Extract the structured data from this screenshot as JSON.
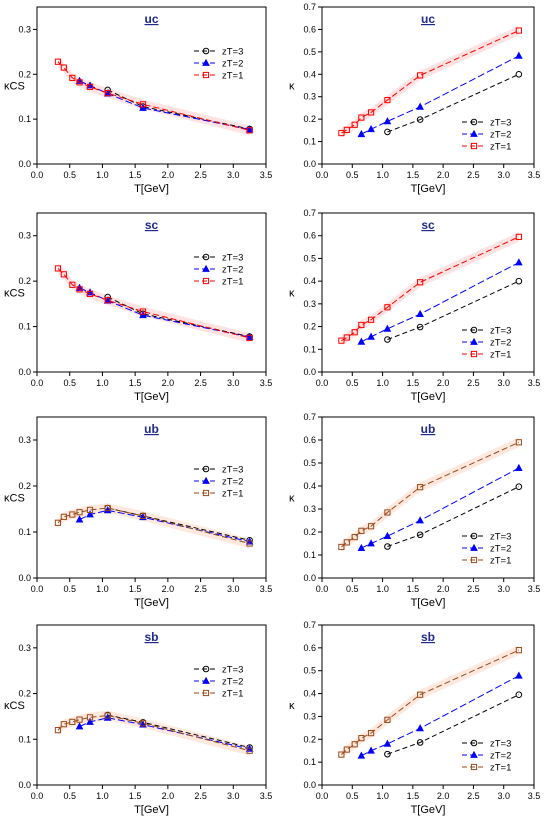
{
  "colors": {
    "axis": "#000000",
    "title": "#1f2a8c",
    "zT3": "#000000",
    "zT2": "#0000ff",
    "zT1_c": "#ff0000",
    "zT1_b": "#9a4a1a",
    "band_c": "#ffd6d6",
    "band_b": "#ffe0d0"
  },
  "chart_data": [
    {
      "type": "line",
      "title": "uc",
      "xlabel": "T[GeV]",
      "ylabel": "κCS",
      "xlim": [
        0.0,
        3.5
      ],
      "ylim": [
        0.0,
        0.35
      ],
      "xticks": [
        "0.0",
        "0.5",
        "1.0",
        "1.5",
        "2.0",
        "2.5",
        "3.0",
        "3.5"
      ],
      "yticks": [
        "0.0",
        "0.1",
        "0.2",
        "0.3"
      ],
      "legend_position": "upper-right",
      "series": [
        {
          "name": "zT=3",
          "marker": "circle",
          "x": [
            1.08,
            1.62,
            3.25
          ],
          "y": [
            0.165,
            0.128,
            0.078
          ]
        },
        {
          "name": "zT=2",
          "marker": "triangle",
          "x": [
            0.65,
            0.81,
            1.08,
            1.62,
            3.25
          ],
          "y": [
            0.185,
            0.175,
            0.157,
            0.125,
            0.077
          ]
        },
        {
          "name": "zT=1",
          "marker": "square",
          "x": [
            0.32,
            0.41,
            0.54,
            0.65,
            0.81,
            1.08,
            1.62,
            3.25
          ],
          "y": [
            0.228,
            0.215,
            0.192,
            0.182,
            0.172,
            0.158,
            0.133,
            0.075
          ]
        }
      ]
    },
    {
      "type": "line",
      "title": "uc",
      "xlabel": "T[GeV]",
      "ylabel": "κ",
      "xlim": [
        0.0,
        3.5
      ],
      "ylim": [
        0.0,
        0.7
      ],
      "xticks": [
        "0.0",
        "0.5",
        "1.0",
        "1.5",
        "2.0",
        "2.5",
        "3.0",
        "3.5"
      ],
      "yticks": [
        "0.0",
        "0.1",
        "0.2",
        "0.3",
        "0.4",
        "0.5",
        "0.6",
        "0.7"
      ],
      "legend_position": "lower-right",
      "series": [
        {
          "name": "zT=3",
          "marker": "circle",
          "x": [
            1.08,
            1.62,
            3.25
          ],
          "y": [
            0.143,
            0.198,
            0.4
          ]
        },
        {
          "name": "zT=2",
          "marker": "triangle",
          "x": [
            0.65,
            0.81,
            1.08,
            1.62,
            3.25
          ],
          "y": [
            0.133,
            0.155,
            0.19,
            0.255,
            0.482
          ]
        },
        {
          "name": "zT=1",
          "marker": "square",
          "x": [
            0.32,
            0.41,
            0.54,
            0.65,
            0.81,
            1.08,
            1.62,
            3.25
          ],
          "y": [
            0.138,
            0.152,
            0.175,
            0.207,
            0.23,
            0.285,
            0.395,
            0.595
          ]
        }
      ]
    },
    {
      "type": "line",
      "title": "sc",
      "xlabel": "T[GeV]",
      "ylabel": "κCS",
      "xlim": [
        0.0,
        3.5
      ],
      "ylim": [
        0.0,
        0.35
      ],
      "xticks": [
        "0.0",
        "0.5",
        "1.0",
        "1.5",
        "2.0",
        "2.5",
        "3.0",
        "3.5"
      ],
      "yticks": [
        "0.0",
        "0.1",
        "0.2",
        "0.3"
      ],
      "legend_position": "upper-right",
      "series": [
        {
          "name": "zT=3",
          "marker": "circle",
          "x": [
            1.08,
            1.62,
            3.25
          ],
          "y": [
            0.165,
            0.128,
            0.078
          ]
        },
        {
          "name": "zT=2",
          "marker": "triangle",
          "x": [
            0.65,
            0.81,
            1.08,
            1.62,
            3.25
          ],
          "y": [
            0.185,
            0.175,
            0.157,
            0.125,
            0.077
          ]
        },
        {
          "name": "zT=1",
          "marker": "square",
          "x": [
            0.32,
            0.41,
            0.54,
            0.65,
            0.81,
            1.08,
            1.62,
            3.25
          ],
          "y": [
            0.228,
            0.215,
            0.192,
            0.182,
            0.172,
            0.158,
            0.133,
            0.075
          ]
        }
      ]
    },
    {
      "type": "line",
      "title": "sc",
      "xlabel": "T[GeV]",
      "ylabel": "κ",
      "xlim": [
        0.0,
        3.5
      ],
      "ylim": [
        0.0,
        0.7
      ],
      "xticks": [
        "0.0",
        "0.5",
        "1.0",
        "1.5",
        "2.0",
        "2.5",
        "3.0",
        "3.5"
      ],
      "yticks": [
        "0.0",
        "0.1",
        "0.2",
        "0.3",
        "0.4",
        "0.5",
        "0.6",
        "0.7"
      ],
      "legend_position": "lower-right",
      "series": [
        {
          "name": "zT=3",
          "marker": "circle",
          "x": [
            1.08,
            1.62,
            3.25
          ],
          "y": [
            0.143,
            0.198,
            0.4
          ]
        },
        {
          "name": "zT=2",
          "marker": "triangle",
          "x": [
            0.65,
            0.81,
            1.08,
            1.62,
            3.25
          ],
          "y": [
            0.133,
            0.155,
            0.19,
            0.255,
            0.482
          ]
        },
        {
          "name": "zT=1",
          "marker": "square",
          "x": [
            0.32,
            0.41,
            0.54,
            0.65,
            0.81,
            1.08,
            1.62,
            3.25
          ],
          "y": [
            0.138,
            0.152,
            0.175,
            0.207,
            0.23,
            0.285,
            0.395,
            0.595
          ]
        }
      ]
    },
    {
      "type": "line",
      "title": "ub",
      "xlabel": "T[GeV]",
      "ylabel": "κCS",
      "xlim": [
        0.0,
        3.5
      ],
      "ylim": [
        0.0,
        0.35
      ],
      "xticks": [
        "0.0",
        "0.5",
        "1.0",
        "1.5",
        "2.0",
        "2.5",
        "3.0",
        "3.5"
      ],
      "yticks": [
        "0.0",
        "0.1",
        "0.2",
        "0.3"
      ],
      "legend_position": "center-right",
      "series": [
        {
          "name": "zT=3",
          "marker": "circle",
          "x": [
            1.08,
            1.62,
            3.25
          ],
          "y": [
            0.152,
            0.135,
            0.082
          ]
        },
        {
          "name": "zT=2",
          "marker": "triangle",
          "x": [
            0.65,
            0.81,
            1.08,
            1.62,
            3.25
          ],
          "y": [
            0.127,
            0.138,
            0.147,
            0.132,
            0.079
          ]
        },
        {
          "name": "zT=1",
          "marker": "square",
          "x": [
            0.32,
            0.41,
            0.54,
            0.65,
            0.81,
            1.08,
            1.62,
            3.25
          ],
          "y": [
            0.12,
            0.133,
            0.138,
            0.143,
            0.148,
            0.152,
            0.135,
            0.075
          ]
        }
      ]
    },
    {
      "type": "line",
      "title": "ub",
      "xlabel": "T[GeV]",
      "ylabel": "κ",
      "xlim": [
        0.0,
        3.5
      ],
      "ylim": [
        0.0,
        0.7
      ],
      "xticks": [
        "0.0",
        "0.5",
        "1.0",
        "1.5",
        "2.0",
        "2.5",
        "3.0",
        "3.5"
      ],
      "yticks": [
        "0.0",
        "0.1",
        "0.2",
        "0.3",
        "0.4",
        "0.5",
        "0.6",
        "0.7"
      ],
      "legend_position": "lower-right",
      "series": [
        {
          "name": "zT=3",
          "marker": "circle",
          "x": [
            1.08,
            1.62,
            3.25
          ],
          "y": [
            0.137,
            0.188,
            0.397
          ]
        },
        {
          "name": "zT=2",
          "marker": "triangle",
          "x": [
            0.65,
            0.81,
            1.08,
            1.62,
            3.25
          ],
          "y": [
            0.13,
            0.15,
            0.182,
            0.25,
            0.478
          ]
        },
        {
          "name": "zT=1",
          "marker": "square",
          "x": [
            0.32,
            0.41,
            0.54,
            0.65,
            0.81,
            1.08,
            1.62,
            3.25
          ],
          "y": [
            0.135,
            0.155,
            0.178,
            0.205,
            0.225,
            0.285,
            0.395,
            0.59
          ]
        }
      ]
    },
    {
      "type": "line",
      "title": "sb",
      "xlabel": "T[GeV]",
      "ylabel": "κCS",
      "xlim": [
        0.0,
        3.5
      ],
      "ylim": [
        0.0,
        0.35
      ],
      "xticks": [
        "0.0",
        "0.5",
        "1.0",
        "1.5",
        "2.0",
        "2.5",
        "3.0",
        "3.5"
      ],
      "yticks": [
        "0.0",
        "0.1",
        "0.2",
        "0.3"
      ],
      "legend_position": "upper-right",
      "series": [
        {
          "name": "zT=3",
          "marker": "circle",
          "x": [
            1.08,
            1.62,
            3.25
          ],
          "y": [
            0.153,
            0.137,
            0.082
          ]
        },
        {
          "name": "zT=2",
          "marker": "triangle",
          "x": [
            0.65,
            0.81,
            1.08,
            1.62,
            3.25
          ],
          "y": [
            0.128,
            0.138,
            0.147,
            0.132,
            0.079
          ]
        },
        {
          "name": "zT=1",
          "marker": "square",
          "x": [
            0.32,
            0.41,
            0.54,
            0.65,
            0.81,
            1.08,
            1.62,
            3.25
          ],
          "y": [
            0.12,
            0.133,
            0.138,
            0.143,
            0.148,
            0.152,
            0.135,
            0.075
          ]
        }
      ]
    },
    {
      "type": "line",
      "title": "sb",
      "xlabel": "T[GeV]",
      "ylabel": "κ",
      "xlim": [
        0.0,
        3.5
      ],
      "ylim": [
        0.0,
        0.7
      ],
      "xticks": [
        "0.0",
        "0.5",
        "1.0",
        "1.5",
        "2.0",
        "2.5",
        "3.0",
        "3.5"
      ],
      "yticks": [
        "0.0",
        "0.1",
        "0.2",
        "0.3",
        "0.4",
        "0.5",
        "0.6",
        "0.7"
      ],
      "legend_position": "lower-right",
      "series": [
        {
          "name": "zT=3",
          "marker": "circle",
          "x": [
            1.08,
            1.62,
            3.25
          ],
          "y": [
            0.135,
            0.186,
            0.395
          ]
        },
        {
          "name": "zT=2",
          "marker": "triangle",
          "x": [
            0.65,
            0.81,
            1.08,
            1.62,
            3.25
          ],
          "y": [
            0.128,
            0.15,
            0.18,
            0.248,
            0.478
          ]
        },
        {
          "name": "zT=1",
          "marker": "square",
          "x": [
            0.32,
            0.41,
            0.54,
            0.65,
            0.81,
            1.08,
            1.62,
            3.25
          ],
          "y": [
            0.133,
            0.155,
            0.178,
            0.205,
            0.227,
            0.285,
            0.395,
            0.59
          ]
        }
      ]
    }
  ]
}
